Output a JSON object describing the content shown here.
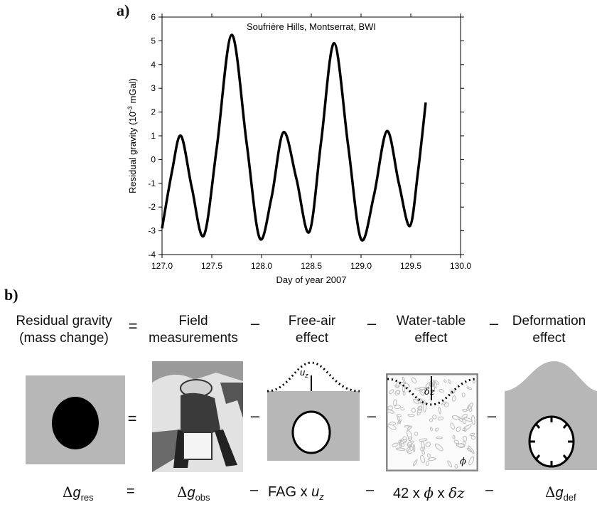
{
  "panel_a": {
    "label": "a)"
  },
  "panel_b": {
    "label": "b)"
  },
  "chart_data": {
    "type": "line",
    "title": "Soufrière Hills, Montserrat, BWI",
    "xlabel": "Day of year 2007",
    "ylabel_main": "Residual gravity (10",
    "ylabel_sup": "-3",
    "ylabel_end": " mGal)",
    "xlim": [
      127.0,
      130.0
    ],
    "ylim": [
      -4,
      6
    ],
    "xticks": [
      "127.0",
      "127.5",
      "128.0",
      "128.5",
      "129.0",
      "129.5",
      "130.0"
    ],
    "yticks": [
      "-4",
      "-3",
      "-2",
      "-1",
      "0",
      "1",
      "2",
      "3",
      "4",
      "5",
      "6"
    ],
    "series": [
      {
        "x": [
          127.0,
          127.1,
          127.19,
          127.3,
          127.42,
          127.55,
          127.7,
          127.85,
          127.98,
          128.1,
          128.22,
          128.35,
          128.48,
          128.6,
          128.73,
          128.87,
          129.0,
          129.13,
          129.26,
          129.38,
          129.49,
          129.57,
          129.65
        ],
        "y": [
          -2.9,
          -0.5,
          1.0,
          -1.2,
          -3.2,
          0.5,
          5.25,
          0.7,
          -3.3,
          -1.6,
          1.15,
          -0.8,
          -3.05,
          0.8,
          4.9,
          0.6,
          -3.35,
          -1.5,
          1.2,
          -1.0,
          -2.8,
          -0.6,
          2.4
        ]
      }
    ]
  },
  "equation_headers": {
    "residual": [
      "Residual gravity",
      "(mass change)"
    ],
    "field": [
      "Field",
      "measurements"
    ],
    "freeair": [
      "Free-air",
      "effect"
    ],
    "water": [
      "Water-table",
      "effect"
    ],
    "deform": [
      "Deformation",
      "effect"
    ]
  },
  "operators": {
    "eq": "=",
    "minus": "–"
  },
  "diagram_labels": {
    "uz_u": "u",
    "uz_z": "z",
    "dz_d": "δ",
    "dz_z": "z",
    "phi": "ϕ"
  },
  "formula": {
    "delta": "Δ",
    "g": "g",
    "res": "res",
    "obs": "obs",
    "def": "def",
    "fag": "FAG x ",
    "u": "u",
    "z": "z",
    "wt_prefix": "42 x ",
    "phi": "ϕ",
    "x": " x ",
    "dz": "δz"
  },
  "colors": {
    "gray": "#b7b7b7",
    "black": "#000000",
    "border": "#888888"
  }
}
